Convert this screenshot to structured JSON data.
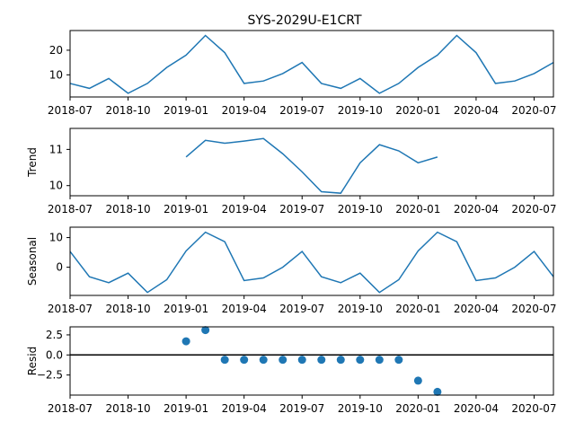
{
  "chart_data": {
    "type": "line",
    "title": "SYS-2029U-E1CRT",
    "x_tick_labels": [
      "2018-07",
      "2018-10",
      "2019-01",
      "2019-04",
      "2019-07",
      "2019-10",
      "2020-01",
      "2020-04",
      "2020-07"
    ],
    "x": [
      "2018-07",
      "2018-08",
      "2018-09",
      "2018-10",
      "2018-11",
      "2018-12",
      "2019-01",
      "2019-02",
      "2019-03",
      "2019-04",
      "2019-05",
      "2019-06",
      "2019-07",
      "2019-08",
      "2019-09",
      "2019-10",
      "2019-11",
      "2019-12",
      "2020-01",
      "2020-02",
      "2020-03",
      "2020-04",
      "2020-05",
      "2020-06",
      "2020-07",
      "2020-08"
    ],
    "xlim": [
      "2018-07",
      "2020-08"
    ],
    "colors": {
      "series": "#1f77b4",
      "axis": "#000000",
      "zero_line": "#000000"
    },
    "panels": [
      {
        "name": "observed",
        "ylabel": "",
        "kind": "line",
        "ylim": [
          1,
          28
        ],
        "yticks": [
          10,
          20
        ],
        "ytick_labels": [
          "10",
          "20"
        ],
        "values": [
          6.5,
          4.5,
          8.5,
          2.5,
          6.5,
          13,
          18,
          26,
          19,
          6.5,
          7.5,
          10.5,
          15,
          6.5,
          4.5,
          8.5,
          2.5,
          6.5,
          13,
          18,
          26,
          19,
          6.5,
          7.5,
          10.5,
          15
        ]
      },
      {
        "name": "trend",
        "ylabel": "Trend",
        "kind": "line",
        "ylim": [
          9.72,
          11.58
        ],
        "yticks": [
          10,
          11
        ],
        "ytick_labels": [
          "10",
          "11"
        ],
        "values": [
          null,
          null,
          null,
          null,
          null,
          null,
          10.79,
          11.25,
          11.17,
          11.23,
          11.3,
          10.88,
          10.38,
          9.83,
          9.79,
          10.63,
          11.13,
          10.96,
          10.63,
          10.79,
          null,
          null,
          null,
          null,
          null,
          null
        ]
      },
      {
        "name": "seasonal",
        "ylabel": "Seasonal",
        "kind": "line",
        "ylim": [
          -9.5,
          13.5
        ],
        "yticks": [
          0,
          10
        ],
        "ytick_labels": [
          "0",
          "10"
        ],
        "values": [
          5.3,
          -3.2,
          -5.2,
          -2.0,
          -8.5,
          -4.2,
          5.5,
          11.8,
          8.6,
          -4.5,
          -3.6,
          0.0,
          5.3,
          -3.2,
          -5.2,
          -2.0,
          -8.5,
          -4.2,
          5.5,
          11.8,
          8.6,
          -4.5,
          -3.6,
          0.0,
          5.3,
          -3.2
        ]
      },
      {
        "name": "resid",
        "ylabel": "Resid",
        "kind": "scatter",
        "ylim": [
          -5.0,
          3.5
        ],
        "yticks": [
          2.5,
          0.0,
          -2.5
        ],
        "ytick_labels": [
          "2.5",
          "0.0",
          "−2.5"
        ],
        "zero_line": true,
        "values": [
          null,
          null,
          null,
          null,
          null,
          null,
          1.7,
          3.1,
          -0.6,
          -0.6,
          -0.6,
          -0.6,
          -0.6,
          -0.6,
          -0.6,
          -0.6,
          -0.6,
          -0.6,
          -3.2,
          -4.6,
          null,
          null,
          null,
          null,
          null,
          null
        ]
      }
    ]
  }
}
